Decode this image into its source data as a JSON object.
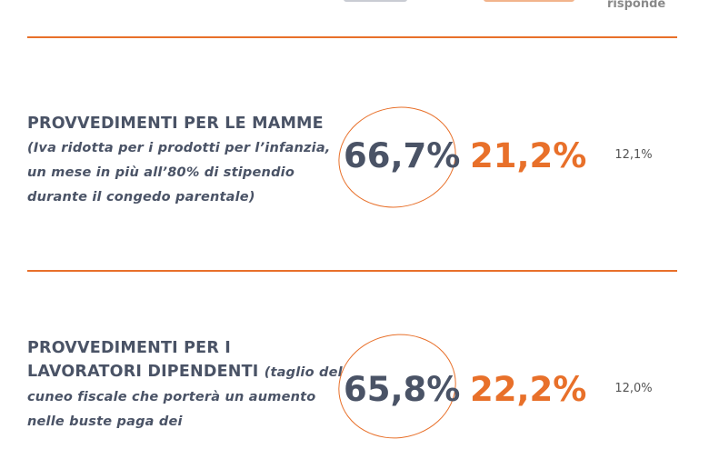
{
  "header": {
    "no_answer_label": "risponde"
  },
  "colors": {
    "accent": "#e8702a",
    "dark": "#4a5366",
    "gray": "#8a8a8a"
  },
  "rows": [
    {
      "heading": "PROVVEDIMENTI PER LE MAMME",
      "description": "(Iva ridotta per i prodotti per l’infanzia, un mese in più all’80% di stipendio durante il congedo parentale)",
      "favorable": "66,7%",
      "contrary": "21,2%",
      "no_answer": "12,1%"
    },
    {
      "heading": "PROVVEDIMENTI PER I LAVORATORI DIPENDENTI",
      "description": "(taglio del cuneo fiscale che porterà un aumento nelle buste paga dei",
      "favorable": "65,8%",
      "contrary": "22,2%",
      "no_answer": "12,0%"
    }
  ]
}
